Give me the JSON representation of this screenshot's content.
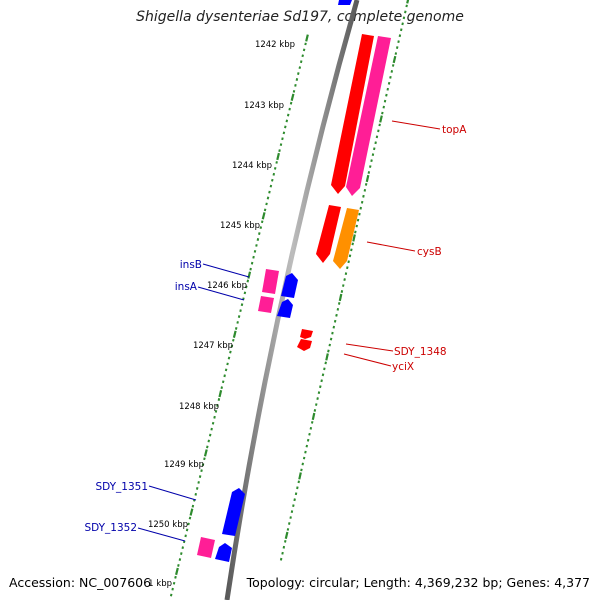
{
  "title": "Shigella dysenteriae Sd197, complete genome",
  "footer": {
    "accession": "Accession: NC_007606",
    "topology": "Topology: circular; Length: 4,369,232 bp; Genes: 4,377"
  },
  "colors": {
    "backbone": "#8c8c8c",
    "ticks": "#2e8b2e",
    "gene_red": "#ff0000",
    "gene_pink": "#ff1e96",
    "gene_orange": "#ff9000",
    "gene_blue": "#0000ff",
    "label_red": "#cc0000",
    "label_blue": "#0000aa"
  },
  "ruler": {
    "labels": [
      "1242 kbp",
      "1243 kbp",
      "1244 kbp",
      "1245 kbp",
      "1246 kbp",
      "1247 kbp",
      "1248 kbp",
      "1249 kbp",
      "1250 kbp",
      "1 kbp"
    ]
  },
  "gene_labels": [
    {
      "text": "topA",
      "strand": "forward"
    },
    {
      "text": "cysB",
      "strand": "forward"
    },
    {
      "text": "SDY_1348",
      "strand": "forward"
    },
    {
      "text": "yciX",
      "strand": "forward"
    },
    {
      "text": "insB",
      "strand": "reverse"
    },
    {
      "text": "insA",
      "strand": "reverse"
    },
    {
      "text": "SDY_1351",
      "strand": "reverse"
    },
    {
      "text": "SDY_1352",
      "strand": "reverse"
    }
  ]
}
